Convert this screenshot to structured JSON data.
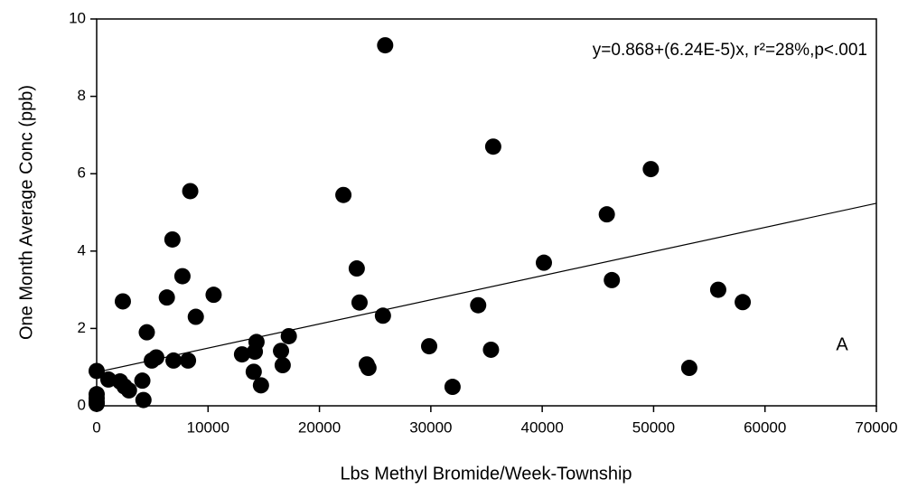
{
  "chart_data": {
    "type": "scatter",
    "xlabel": "Lbs Methyl Bromide/Week-Township",
    "ylabel": "One Month Average Conc (ppb)",
    "annotations": [
      "y=0.868+(6.24E-5)x, r²=28%,p<.001",
      "A"
    ],
    "fit": {
      "intercept": 0.868,
      "slope": 6.24e-05
    },
    "color": "#000000",
    "x": [
      0,
      0,
      0,
      0,
      0,
      1050,
      2100,
      2500,
      2900,
      2350,
      4100,
      4200,
      4500,
      4950,
      5350,
      6300,
      6800,
      6900,
      7700,
      8200,
      8400,
      8900,
      10500,
      13050,
      14100,
      14200,
      14350,
      14750,
      16550,
      16700,
      17250,
      22150,
      23350,
      23600,
      24250,
      24400,
      25700,
      25900,
      29850,
      31950,
      34250,
      35400,
      35600,
      40150,
      45800,
      46250,
      49750,
      53200,
      55800,
      58000
    ],
    "values": [
      0.9,
      0.3,
      0.2,
      0.1,
      0.05,
      0.68,
      0.63,
      0.5,
      0.4,
      2.7,
      0.65,
      0.15,
      1.9,
      1.17,
      1.25,
      2.8,
      4.3,
      1.17,
      3.35,
      1.17,
      5.55,
      2.3,
      2.87,
      1.33,
      0.88,
      1.4,
      1.65,
      0.53,
      1.42,
      1.05,
      1.8,
      5.45,
      3.55,
      2.67,
      1.07,
      0.98,
      2.33,
      9.32,
      1.54,
      0.49,
      2.6,
      1.45,
      6.7,
      3.7,
      4.95,
      3.25,
      6.12,
      0.98,
      3.0,
      2.68
    ],
    "xlim": [
      0,
      70000
    ],
    "xticks": [
      0,
      10000,
      20000,
      30000,
      40000,
      50000,
      60000,
      70000
    ],
    "ylim": [
      0,
      10
    ],
    "yticks": [
      0,
      2,
      4,
      6,
      8,
      10
    ]
  }
}
